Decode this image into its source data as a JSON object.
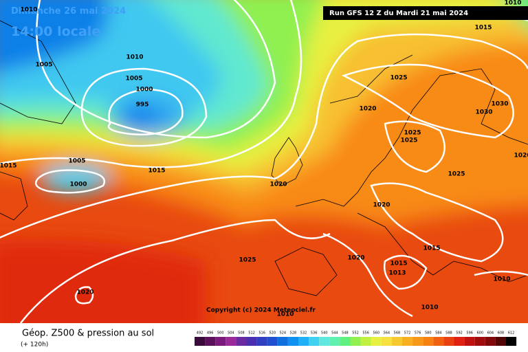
{
  "header": {
    "date": "Dimanche 26 mai 2024",
    "time": "14:00 locale",
    "run": "Run GFS 12 Z du Mardi 21 mai 2024"
  },
  "copyright": "Copyright (c) 2024 Meteociel.fr",
  "footer": {
    "title": "Géop. Z500 & pression au sol",
    "range": "(+ 120h)"
  },
  "isobar_labels": [
    1010,
    1010,
    1015,
    1005,
    1010,
    1005,
    1000,
    995,
    1025,
    1020,
    1030,
    1030,
    1025,
    1025,
    1005,
    1015,
    1015,
    1000,
    1020,
    1025,
    1020,
    1020,
    1015,
    1020,
    1015,
    1013,
    1025,
    1010,
    1020,
    1010,
    1010
  ],
  "legend": {
    "levels": [
      492,
      496,
      500,
      504,
      508,
      512,
      516,
      520,
      524,
      528,
      532,
      536,
      540,
      544,
      548,
      552,
      556,
      560,
      564,
      568,
      572,
      576,
      580,
      584,
      588,
      592,
      596,
      600,
      604,
      608,
      612
    ],
    "colors": [
      "#3a0a3a",
      "#5a105a",
      "#7a1a7a",
      "#9a2a9a",
      "#6a2aa0",
      "#4a30b0",
      "#3040c0",
      "#2050d0",
      "#1070e0",
      "#1090f0",
      "#20b0f8",
      "#40d0f0",
      "#60e8e0",
      "#60f0b0",
      "#60f080",
      "#90f050",
      "#c0f040",
      "#e8f040",
      "#f8e040",
      "#f8c830",
      "#f8b020",
      "#f89818",
      "#f88010",
      "#f06010",
      "#e84010",
      "#e02010",
      "#c01010",
      "#a00c0c",
      "#800808",
      "#500404",
      "#000000"
    ]
  }
}
